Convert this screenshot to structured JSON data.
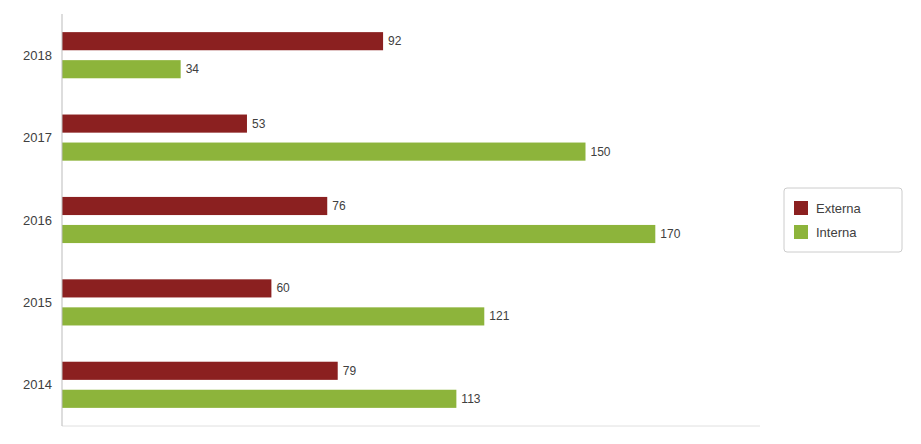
{
  "chart_data": {
    "type": "bar",
    "orientation": "horizontal",
    "categories": [
      "2014",
      "2015",
      "2016",
      "2017",
      "2018"
    ],
    "series": [
      {
        "name": "Externa",
        "color": "#8B2020",
        "values": [
          79,
          60,
          76,
          53,
          92
        ]
      },
      {
        "name": "Interna",
        "color": "#8DB43B",
        "values": [
          113,
          121,
          170,
          150,
          34
        ]
      }
    ],
    "xlim": [
      0,
      200
    ],
    "grid": false,
    "legend": "right",
    "data_labels": true,
    "tick_labels": "y"
  }
}
